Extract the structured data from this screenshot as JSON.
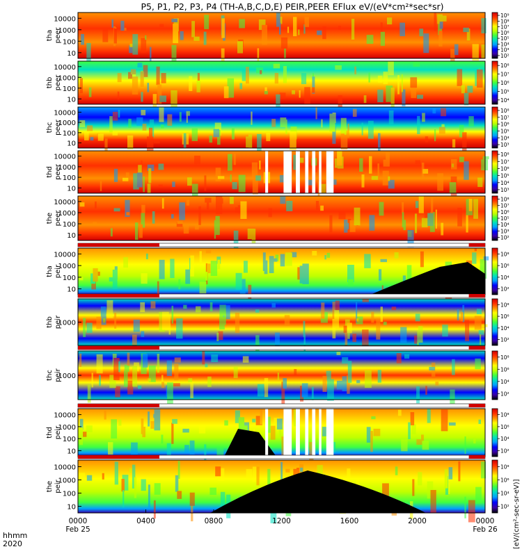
{
  "title": "P5, P1, P2, P3, P4 (TH-A,B,C,D,E) PEIR,PEER EFlux eV/(eV*cm²*sec*sr)",
  "colorbar_label": "[eV/(cm²-sec-sr-eV)]",
  "chart_data": {
    "type": "heatmap",
    "x_axis": {
      "label_line1": "hhmm",
      "label_line2": "2020",
      "ticks": [
        "0000",
        "0400",
        "0800",
        "1200",
        "1600",
        "2000",
        "0000"
      ],
      "tick_hours": [
        0,
        4,
        8,
        12,
        16,
        20,
        24
      ],
      "date_labels": [
        {
          "hour": 0,
          "text": "Feb 25"
        },
        {
          "hour": 24,
          "text": "Feb 26"
        }
      ],
      "range_hours": [
        0,
        24
      ]
    },
    "colormap": [
      "#000000",
      "#3a00a8",
      "#0000ff",
      "#00a0ff",
      "#00e0c0",
      "#40ff40",
      "#c0ff00",
      "#ffff00",
      "#ff9000",
      "#ff3000",
      "#d00000"
    ],
    "panels": [
      {
        "id": "tha-peer",
        "line1": "tha",
        "line2": "peer",
        "y_ticks": [
          "10000",
          "1000",
          "100",
          "10"
        ],
        "cbar_ticks": [
          "10⁹",
          "10⁸",
          "10⁷",
          "10⁶",
          "10⁵",
          "10⁴",
          "10³",
          "10²"
        ],
        "flag_bar": false
      },
      {
        "id": "thb-peer",
        "line1": "thb",
        "line2": "peer",
        "y_ticks": [
          "10000",
          "1000",
          "100",
          "10"
        ],
        "cbar_ticks": [
          "10⁸",
          "10⁷",
          "10⁶",
          "10⁵",
          "10⁴"
        ],
        "flag_bar": false
      },
      {
        "id": "thc-peer",
        "line1": "thc",
        "line2": "peer",
        "y_ticks": [
          "10000",
          "1000",
          "100",
          "10"
        ],
        "cbar_ticks": [
          "10⁸",
          "10⁷",
          "10⁶",
          "10⁵",
          "10⁴",
          "10³"
        ],
        "flag_bar": false
      },
      {
        "id": "thd-peer",
        "line1": "thd",
        "line2": "peer",
        "y_ticks": [
          "10000",
          "1000",
          "100",
          "10"
        ],
        "cbar_ticks": [
          "10⁸",
          "10⁷",
          "10⁶",
          "10⁵",
          "10⁴",
          "10³"
        ],
        "flag_bar": false
      },
      {
        "id": "the-peer",
        "line1": "the",
        "line2": "peer",
        "y_ticks": [
          "10000",
          "1000",
          "100",
          "10"
        ],
        "cbar_ticks": [
          "10⁸",
          "10⁷",
          "10⁶",
          "10⁵",
          "10⁴",
          "10³",
          "10²"
        ],
        "flag_bar": false
      },
      {
        "id": "tha-peir",
        "line1": "tha",
        "line2": "peir",
        "y_ticks": [
          "10000",
          "1000",
          "100",
          "10"
        ],
        "cbar_ticks": [
          "10⁸",
          "10⁶",
          "10⁴",
          "10²"
        ],
        "flag_bar": true
      },
      {
        "id": "thb-peir",
        "line1": "thb",
        "line2": "peir",
        "y_ticks": [
          "1000"
        ],
        "cbar_ticks": [
          "10⁸",
          "10⁶",
          "10⁴",
          "10²"
        ],
        "flag_bar": true
      },
      {
        "id": "thc-peir",
        "line1": "thc",
        "line2": "peir",
        "y_ticks": [
          "1000"
        ],
        "cbar_ticks": [
          "10⁸",
          "10⁶",
          "10⁴",
          "10²"
        ],
        "flag_bar": true
      },
      {
        "id": "thd-peir",
        "line1": "thd",
        "line2": "peir",
        "y_ticks": [
          "10000",
          "1000",
          "100",
          "10"
        ],
        "cbar_ticks": [
          "10⁸",
          "10⁶",
          "10⁴",
          "10²"
        ],
        "flag_bar": true
      },
      {
        "id": "the-peir",
        "line1": "the",
        "line2": "peir",
        "y_ticks": [
          "10000",
          "1000",
          "100",
          "10"
        ],
        "cbar_ticks": [
          "10⁸",
          "10⁶",
          "10⁴",
          "10²"
        ],
        "flag_bar": true
      }
    ]
  }
}
